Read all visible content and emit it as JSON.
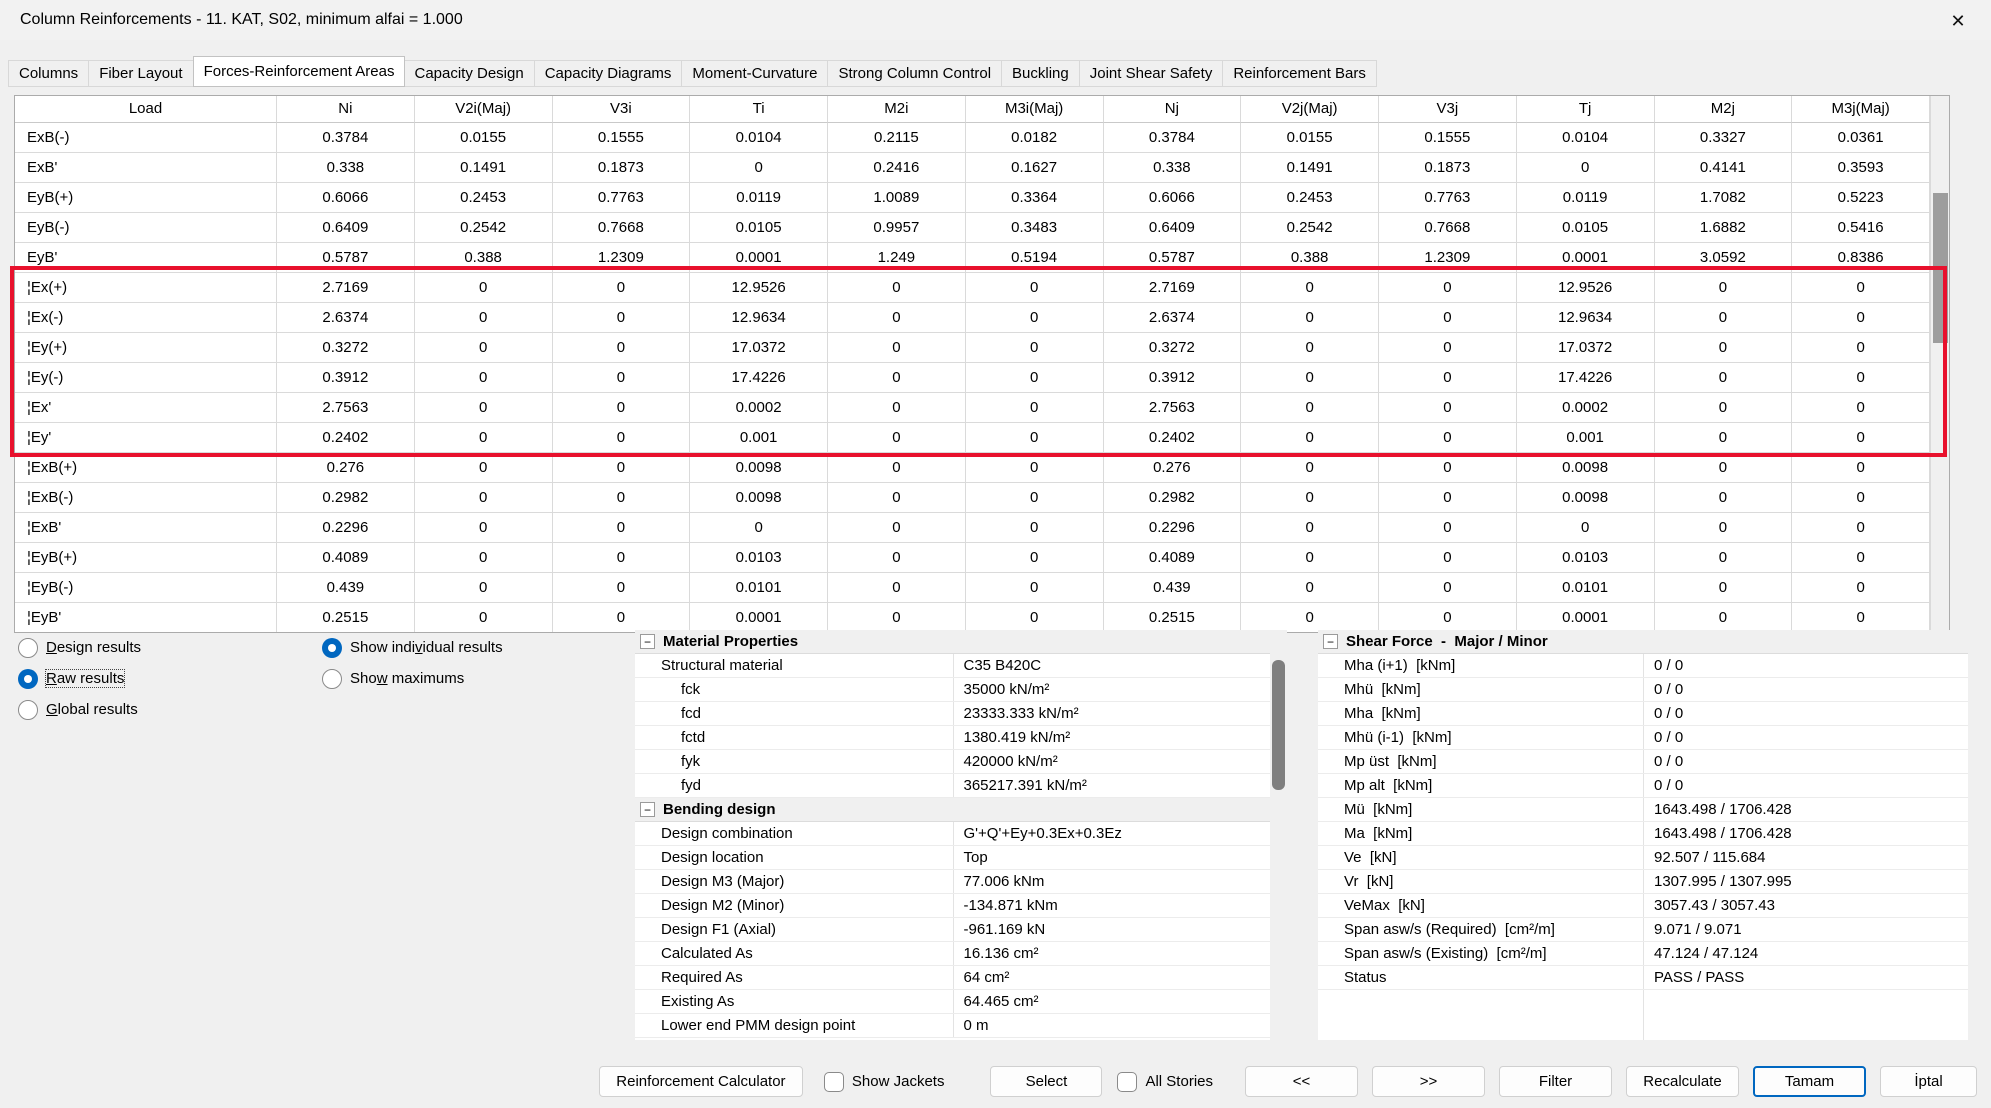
{
  "window": {
    "title": "Column Reinforcements - 11. KAT, S02, minimum alfai = 1.000",
    "close_icon": "✕"
  },
  "tabs": [
    {
      "label": "Columns",
      "active": false
    },
    {
      "label": "Fiber Layout",
      "active": false
    },
    {
      "label": "Forces-Reinforcement Areas",
      "active": true
    },
    {
      "label": "Capacity Design",
      "active": false
    },
    {
      "label": "Capacity Diagrams",
      "active": false
    },
    {
      "label": "Moment-Curvature",
      "active": false
    },
    {
      "label": "Strong Column Control",
      "active": false
    },
    {
      "label": "Buckling",
      "active": false
    },
    {
      "label": "Joint Shear Safety",
      "active": false
    },
    {
      "label": "Reinforcement Bars",
      "active": false
    }
  ],
  "results_table": {
    "columns": [
      "Load",
      "Ni",
      "V2i(Maj)",
      "V3i",
      "Ti",
      "M2i",
      "M3i(Maj)",
      "Nj",
      "V2j(Maj)",
      "V3j",
      "Tj",
      "M2j",
      "M3j(Maj)"
    ],
    "rows": [
      {
        "label": "ExB(-)",
        "values": [
          "0.3784",
          "0.0155",
          "0.1555",
          "0.0104",
          "0.2115",
          "0.0182",
          "0.3784",
          "0.0155",
          "0.1555",
          "0.0104",
          "0.3327",
          "0.0361"
        ]
      },
      {
        "label": "ExB'",
        "values": [
          "0.338",
          "0.1491",
          "0.1873",
          "0",
          "0.2416",
          "0.1627",
          "0.338",
          "0.1491",
          "0.1873",
          "0",
          "0.4141",
          "0.3593"
        ]
      },
      {
        "label": "EyB(+)",
        "values": [
          "0.6066",
          "0.2453",
          "0.7763",
          "0.0119",
          "1.0089",
          "0.3364",
          "0.6066",
          "0.2453",
          "0.7763",
          "0.0119",
          "1.7082",
          "0.5223"
        ]
      },
      {
        "label": "EyB(-)",
        "values": [
          "0.6409",
          "0.2542",
          "0.7668",
          "0.0105",
          "0.9957",
          "0.3483",
          "0.6409",
          "0.2542",
          "0.7668",
          "0.0105",
          "1.6882",
          "0.5416"
        ]
      },
      {
        "label": "EyB'",
        "values": [
          "0.5787",
          "0.388",
          "1.2309",
          "0.0001",
          "1.249",
          "0.5194",
          "0.5787",
          "0.388",
          "1.2309",
          "0.0001",
          "3.0592",
          "0.8386"
        ]
      },
      {
        "label": "¦Ex(+)",
        "values": [
          "2.7169",
          "0",
          "0",
          "12.9526",
          "0",
          "0",
          "2.7169",
          "0",
          "0",
          "12.9526",
          "0",
          "0"
        ],
        "highlighted": true
      },
      {
        "label": "¦Ex(-)",
        "values": [
          "2.6374",
          "0",
          "0",
          "12.9634",
          "0",
          "0",
          "2.6374",
          "0",
          "0",
          "12.9634",
          "0",
          "0"
        ],
        "highlighted": true
      },
      {
        "label": "¦Ey(+)",
        "values": [
          "0.3272",
          "0",
          "0",
          "17.0372",
          "0",
          "0",
          "0.3272",
          "0",
          "0",
          "17.0372",
          "0",
          "0"
        ],
        "highlighted": true
      },
      {
        "label": "¦Ey(-)",
        "values": [
          "0.3912",
          "0",
          "0",
          "17.4226",
          "0",
          "0",
          "0.3912",
          "0",
          "0",
          "17.4226",
          "0",
          "0"
        ],
        "highlighted": true
      },
      {
        "label": "¦Ex'",
        "values": [
          "2.7563",
          "0",
          "0",
          "0.0002",
          "0",
          "0",
          "2.7563",
          "0",
          "0",
          "0.0002",
          "0",
          "0"
        ],
        "highlighted": true
      },
      {
        "label": "¦Ey'",
        "values": [
          "0.2402",
          "0",
          "0",
          "0.001",
          "0",
          "0",
          "0.2402",
          "0",
          "0",
          "0.001",
          "0",
          "0"
        ],
        "highlighted": true
      },
      {
        "label": "¦ExB(+)",
        "values": [
          "0.276",
          "0",
          "0",
          "0.0098",
          "0",
          "0",
          "0.276",
          "0",
          "0",
          "0.0098",
          "0",
          "0"
        ]
      },
      {
        "label": "¦ExB(-)",
        "values": [
          "0.2982",
          "0",
          "0",
          "0.0098",
          "0",
          "0",
          "0.2982",
          "0",
          "0",
          "0.0098",
          "0",
          "0"
        ]
      },
      {
        "label": "¦ExB'",
        "values": [
          "0.2296",
          "0",
          "0",
          "0",
          "0",
          "0",
          "0.2296",
          "0",
          "0",
          "0",
          "0",
          "0"
        ]
      },
      {
        "label": "¦EyB(+)",
        "values": [
          "0.4089",
          "0",
          "0",
          "0.0103",
          "0",
          "0",
          "0.4089",
          "0",
          "0",
          "0.0103",
          "0",
          "0"
        ]
      },
      {
        "label": "¦EyB(-)",
        "values": [
          "0.439",
          "0",
          "0",
          "0.0101",
          "0",
          "0",
          "0.439",
          "0",
          "0",
          "0.0101",
          "0",
          "0"
        ]
      },
      {
        "label": "¦EyB'",
        "values": [
          "0.2515",
          "0",
          "0",
          "0.0001",
          "0",
          "0",
          "0.2515",
          "0",
          "0",
          "0.0001",
          "0",
          "0"
        ]
      }
    ]
  },
  "result_type_options": [
    {
      "label_html": "<u>D</u>esign results",
      "selected": false,
      "focused": false
    },
    {
      "label_html": "<u>R</u>aw results",
      "selected": true,
      "focused": true
    },
    {
      "label_html": "<u>G</u>lobal results",
      "selected": false,
      "focused": false
    }
  ],
  "display_options": [
    {
      "label_html": "Show indi<u>v</u>idual results",
      "selected": true,
      "focused": false
    },
    {
      "label_html": "Sho<u>w</u> maximums",
      "selected": false,
      "focused": false
    }
  ],
  "properties_panel": {
    "rows": [
      {
        "header": true,
        "icon": "−",
        "name": "Material Properties"
      },
      {
        "name": "Structural material",
        "value": "C35 B420C"
      },
      {
        "name": "fck",
        "value": "35000 kN/m²",
        "indent": true
      },
      {
        "name": "fcd",
        "value": "23333.333 kN/m²",
        "indent": true
      },
      {
        "name": "fctd",
        "value": "1380.419 kN/m²",
        "indent": true
      },
      {
        "name": "fyk",
        "value": "420000 kN/m²",
        "indent": true
      },
      {
        "name": "fyd",
        "value": "365217.391 kN/m²",
        "indent": true
      },
      {
        "header": true,
        "icon": "−",
        "name": "Bending design"
      },
      {
        "name": "Design combination",
        "value": "G'+Q'+Ey+0.3Ex+0.3Ez"
      },
      {
        "name": "Design location",
        "value": "Top"
      },
      {
        "name": "Design M3 (Major)",
        "value": "77.006 kNm"
      },
      {
        "name": "Design M2 (Minor)",
        "value": "-134.871 kNm"
      },
      {
        "name": "Design F1 (Axial)",
        "value": "-961.169 kN"
      },
      {
        "name": "Calculated As",
        "value": "16.136 cm²"
      },
      {
        "name": "Required As",
        "value": "64 cm²"
      },
      {
        "name": "Existing As",
        "value": "64.465 cm²"
      },
      {
        "name": "Lower end PMM design point",
        "value": "0 m"
      }
    ]
  },
  "shear_panel": {
    "rows": [
      {
        "header": true,
        "icon": "−",
        "name": "Shear Force  -  Major / Minor"
      },
      {
        "name": "Mha (i+1)  [kNm]",
        "value": "0 / 0"
      },
      {
        "name": "Mhü  [kNm]",
        "value": "0 / 0"
      },
      {
        "name": "Mha  [kNm]",
        "value": "0 / 0"
      },
      {
        "name": "Mhü (i-1)  [kNm]",
        "value": "0 / 0"
      },
      {
        "name": "Mp üst  [kNm]",
        "value": "0 / 0"
      },
      {
        "name": "Mp alt  [kNm]",
        "value": "0 / 0"
      },
      {
        "name": "Mü  [kNm]",
        "value": "1643.498 / 1706.428"
      },
      {
        "name": "Ma  [kNm]",
        "value": "1643.498 / 1706.428"
      },
      {
        "name": "Ve  [kN]",
        "value": "92.507 / 115.684"
      },
      {
        "name": "Vr  [kN]",
        "value": "1307.995 / 1307.995"
      },
      {
        "name": "VeMax  [kN]",
        "value": "3057.43 / 3057.43"
      },
      {
        "name": "Span asw/s (Required)  [cm²/m]",
        "value": "9.071 / 9.071"
      },
      {
        "name": "Span asw/s (Existing)  [cm²/m]",
        "value": "47.124 / 47.124"
      },
      {
        "name": "Status",
        "value": "PASS / PASS"
      }
    ]
  },
  "footer": {
    "reinforcement_calculator": "Reinforcement Calculator",
    "show_jackets": {
      "label": "Show Jackets",
      "checked": false
    },
    "select": "Select",
    "all_stories": {
      "label": "All Stories",
      "checked": false
    },
    "prev": "<<",
    "next": ">>",
    "filter": "Filter",
    "recalculate": "Recalculate",
    "ok": "Tamam",
    "cancel": "İptal"
  },
  "colors": {
    "highlight_box": "#e8112d",
    "accent_blue": "#0067c0"
  }
}
